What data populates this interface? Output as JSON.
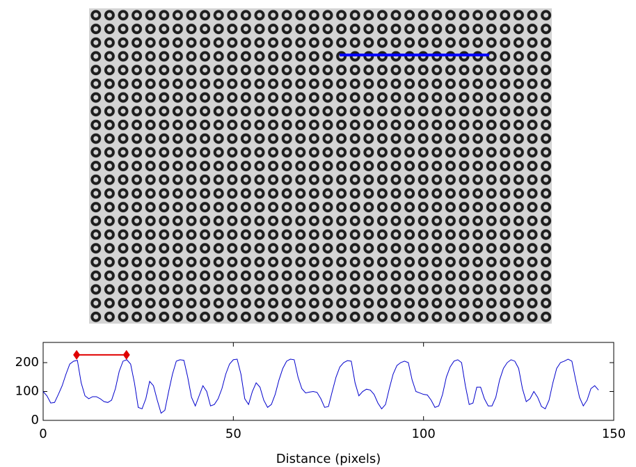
{
  "chart_data": {
    "type": "line",
    "xlabel": "Distance (pixels)",
    "x": [
      0,
      1,
      2,
      3,
      4,
      5,
      6,
      7,
      8,
      9,
      10,
      11,
      12,
      13,
      14,
      15,
      16,
      17,
      18,
      19,
      20,
      21,
      22,
      23,
      24,
      25,
      26,
      27,
      28,
      29,
      30,
      31,
      32,
      33,
      34,
      35,
      36,
      37,
      38,
      39,
      40,
      41,
      42,
      43,
      44,
      45,
      46,
      47,
      48,
      49,
      50,
      51,
      52,
      53,
      54,
      55,
      56,
      57,
      58,
      59,
      60,
      61,
      62,
      63,
      64,
      65,
      66,
      67,
      68,
      69,
      70,
      71,
      72,
      73,
      74,
      75,
      76,
      77,
      78,
      79,
      80,
      81,
      82,
      83,
      84,
      85,
      86,
      87,
      88,
      89,
      90,
      91,
      92,
      93,
      94,
      95,
      96,
      97,
      98,
      99,
      100,
      101,
      102,
      103,
      104,
      105,
      106,
      107,
      108,
      109,
      110,
      111,
      112,
      113,
      114,
      115,
      116,
      117,
      118,
      119,
      120,
      121,
      122,
      123,
      124,
      125,
      126,
      127,
      128,
      129,
      130,
      131,
      132,
      133,
      134,
      135,
      136,
      137,
      138,
      139,
      140,
      141,
      142,
      143,
      144,
      145,
      146
    ],
    "values": [
      100,
      85,
      60,
      62,
      90,
      120,
      160,
      195,
      205,
      208,
      130,
      85,
      75,
      82,
      82,
      75,
      65,
      62,
      70,
      110,
      170,
      205,
      210,
      195,
      130,
      45,
      40,
      75,
      135,
      120,
      70,
      25,
      35,
      100,
      160,
      205,
      210,
      208,
      150,
      80,
      50,
      85,
      120,
      100,
      50,
      55,
      75,
      110,
      160,
      195,
      210,
      212,
      160,
      75,
      55,
      100,
      130,
      115,
      70,
      45,
      55,
      90,
      140,
      180,
      205,
      212,
      210,
      150,
      110,
      95,
      98,
      100,
      97,
      75,
      45,
      48,
      100,
      150,
      185,
      200,
      207,
      205,
      130,
      85,
      100,
      108,
      105,
      90,
      60,
      40,
      55,
      110,
      160,
      190,
      200,
      205,
      200,
      140,
      100,
      95,
      90,
      88,
      70,
      45,
      50,
      90,
      150,
      185,
      205,
      210,
      200,
      120,
      55,
      60,
      115,
      115,
      75,
      50,
      50,
      80,
      140,
      180,
      200,
      210,
      205,
      180,
      110,
      65,
      75,
      100,
      80,
      48,
      40,
      70,
      130,
      180,
      200,
      205,
      212,
      205,
      140,
      80,
      50,
      70,
      110,
      120,
      105
    ],
    "color": "#0000cc",
    "markers": {
      "x": [
        8.8,
        21.9
      ],
      "y": [
        227,
        227
      ],
      "color": "#e00000"
    },
    "xlim": [
      0,
      150
    ],
    "ylim": [
      0,
      270
    ],
    "xticks": [
      0,
      50,
      100,
      150
    ],
    "yticks": [
      0,
      100,
      200
    ]
  }
}
